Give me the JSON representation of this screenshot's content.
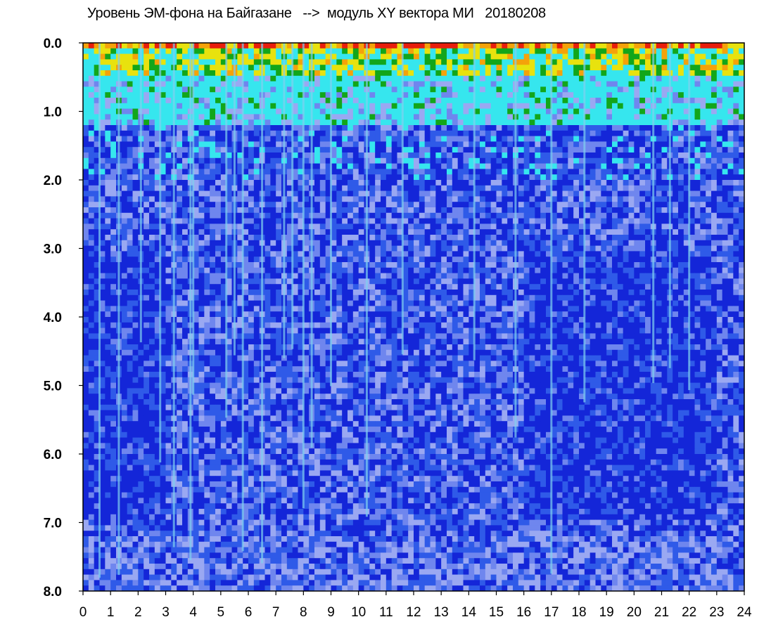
{
  "chart_data": {
    "type": "heatmap",
    "title": "Уровень ЭМ-фона на Байгазане   -->  модуль XY вектора МИ   20180208",
    "xlabel": "",
    "ylabel": "",
    "xlim": [
      0,
      24
    ],
    "ylim": [
      0,
      8
    ],
    "y_inverted": true,
    "grid": false,
    "x_ticks": [
      "0",
      "1",
      "2",
      "3",
      "4",
      "5",
      "6",
      "7",
      "8",
      "9",
      "10",
      "11",
      "12",
      "13",
      "14",
      "15",
      "16",
      "17",
      "18",
      "19",
      "20",
      "21",
      "22",
      "23",
      "24"
    ],
    "y_ticks": [
      "0.0",
      "1.0",
      "2.0",
      "3.0",
      "4.0",
      "5.0",
      "6.0",
      "7.0",
      "8.0"
    ],
    "colormap": [
      "#1426d8",
      "#2f5ae8",
      "#6f86ee",
      "#9aa8f2",
      "#36e6ee",
      "#12a61a",
      "#e8e20e",
      "#f4a20a",
      "#e81e0c"
    ],
    "bands": [
      {
        "y_range": [
          0.0,
          0.15
        ],
        "level": "high",
        "colors": [
          "#e81e0c",
          "#f4a20a",
          "#e8e20e"
        ]
      },
      {
        "y_range": [
          0.15,
          1.2
        ],
        "level": "medium",
        "colors": [
          "#36e6ee",
          "#12a61a",
          "#9aa8f2"
        ]
      },
      {
        "y_range": [
          1.2,
          8.0
        ],
        "level": "low",
        "colors": [
          "#1426d8",
          "#2f5ae8",
          "#6f86ee",
          "#9aa8f2"
        ]
      }
    ],
    "vertical_streaks_x": [
      0.6,
      1.3,
      2.1,
      2.8,
      3.3,
      3.9,
      4.0,
      5.2,
      5.5,
      5.8,
      6.5,
      7.3,
      7.6,
      8.0,
      8.3,
      9.0,
      10.3,
      11.6,
      14.2,
      15.7,
      17.0,
      18.2,
      20.7,
      21.3,
      22.0
    ]
  }
}
